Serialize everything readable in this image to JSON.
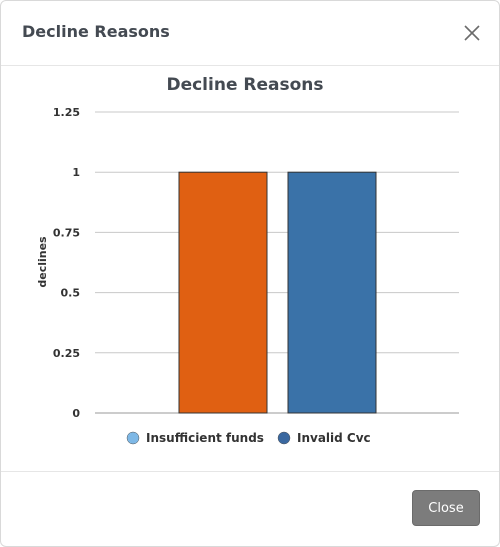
{
  "modal": {
    "title": "Decline Reasons",
    "close_button_label": "Close"
  },
  "colors": {
    "insufficient_funds": "#e06012",
    "invalid_cvc": "#3a72a8",
    "legend_insufficient_funds": "#7eb8e6",
    "legend_invalid_cvc": "#3a68a0"
  },
  "chart_data": {
    "type": "bar",
    "title": "Decline Reasons",
    "xlabel": "",
    "ylabel": "declines",
    "ylim": [
      0,
      1.25
    ],
    "yticks": [
      "0",
      "0.25",
      "0.5",
      "0.75",
      "1",
      "1.25"
    ],
    "yticks_values": [
      0,
      0.25,
      0.5,
      0.75,
      1,
      1.25
    ],
    "grid": true,
    "legend_position": "bottom-left",
    "series": [
      {
        "name": "Insufficient funds",
        "values": [
          1
        ]
      },
      {
        "name": "Invalid Cvc",
        "values": [
          1
        ]
      }
    ]
  }
}
